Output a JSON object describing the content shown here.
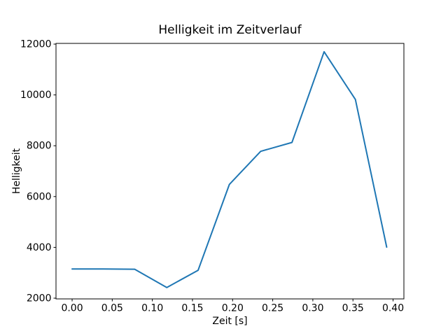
{
  "window": {
    "background": "#ffffff",
    "plot_background": "#ffffff",
    "spine_color": "#000000"
  },
  "chart_data": {
    "type": "line",
    "title": "Helligkeit im Zeitverlauf",
    "xlabel": "Zeit [s]",
    "ylabel": "Helligkeit",
    "x": [
      0.0,
      0.039,
      0.078,
      0.118,
      0.157,
      0.196,
      0.235,
      0.274,
      0.314,
      0.353,
      0.392
    ],
    "values": [
      3150,
      3150,
      3140,
      2420,
      3100,
      6480,
      7780,
      8130,
      11700,
      9820,
      4010
    ],
    "line_color": "#1f77b4",
    "line_width": 2,
    "xlim": [
      -0.0201,
      0.4135
    ],
    "ylim": [
      1972,
      12028
    ],
    "xtick_labels": [
      "0.00",
      "0.05",
      "0.10",
      "0.15",
      "0.20",
      "0.25",
      "0.30",
      "0.35",
      "0.40"
    ],
    "xtick_values": [
      0.0,
      0.05,
      0.1,
      0.15,
      0.2,
      0.25,
      0.3,
      0.35,
      0.4
    ],
    "ytick_values": [
      2000,
      4000,
      6000,
      8000,
      10000,
      12000
    ],
    "grid": false,
    "legend": null,
    "markers": "none"
  }
}
